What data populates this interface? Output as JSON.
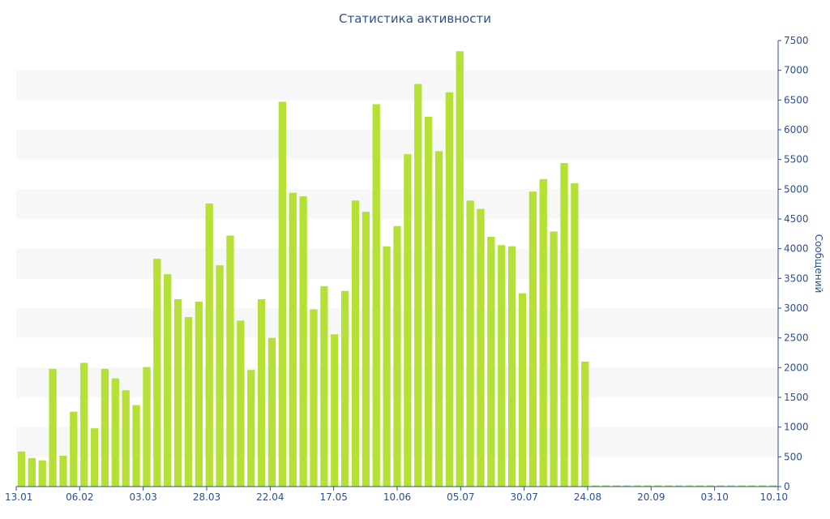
{
  "chart_data": {
    "type": "bar",
    "title": "Статистика активности",
    "xlabel": "",
    "ylabel": "Сообщений",
    "ylim": [
      0,
      7500
    ],
    "yticks": [
      0,
      500,
      1000,
      1500,
      2000,
      2500,
      3000,
      3500,
      4000,
      4500,
      5000,
      5500,
      6000,
      6500,
      7000,
      7500
    ],
    "x_tick_labels": [
      "13.01",
      "06.02",
      "03.03",
      "28.03",
      "22.04",
      "17.05",
      "10.06",
      "05.07",
      "30.07",
      "24.08",
      "20.09",
      "03.10",
      "10.10"
    ],
    "grid": "alternating horizontal bands",
    "bar_color": "#b5e035",
    "y_axis_side": "right",
    "values": [
      590,
      480,
      440,
      1980,
      520,
      1260,
      2080,
      980,
      1980,
      1820,
      1620,
      1370,
      2010,
      3830,
      3570,
      3150,
      2850,
      3110,
      4760,
      3720,
      4220,
      2790,
      1960,
      3150,
      2500,
      6470,
      4940,
      4880,
      2980,
      3370,
      2560,
      3290,
      4810,
      4620,
      6430,
      4040,
      4380,
      5590,
      6770,
      6220,
      5640,
      6630,
      7320,
      4810,
      4670,
      4200,
      4060,
      4040,
      3250,
      4960,
      5170,
      4290,
      5440,
      5100,
      2100,
      20,
      20,
      20,
      20,
      20,
      20,
      20,
      20,
      20,
      20,
      20,
      20,
      20,
      20,
      20,
      20,
      20,
      20
    ]
  }
}
